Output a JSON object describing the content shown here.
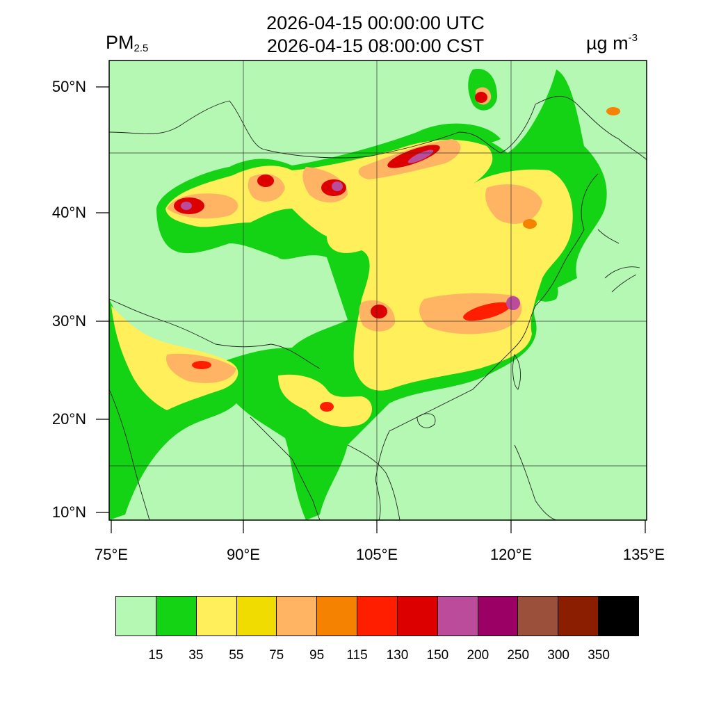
{
  "title": {
    "line1": "2026-04-15 00:00:00 UTC",
    "line2": "2026-04-15 08:00:00 CST"
  },
  "variable": {
    "name": "PM",
    "subscript": "2.5"
  },
  "units": {
    "base": "µg m",
    "exponent": "-3"
  },
  "lat_ticks": [
    "50°N",
    "40°N",
    "30°N",
    "20°N",
    "10°N"
  ],
  "lon_ticks": [
    "75°E",
    "90°E",
    "105°E",
    "120°E",
    "135°E"
  ],
  "colorbar": {
    "colors": [
      "#b4f8b4",
      "#14d214",
      "#ffef5a",
      "#f0dc00",
      "#ffb464",
      "#f58200",
      "#ff1e00",
      "#dc0000",
      "#bb4b9b",
      "#9b0064",
      "#9b503c",
      "#8c1e00",
      "#000000"
    ],
    "labels": [
      "15",
      "35",
      "55",
      "75",
      "95",
      "115",
      "130",
      "150",
      "200",
      "250",
      "300",
      "350"
    ]
  }
}
